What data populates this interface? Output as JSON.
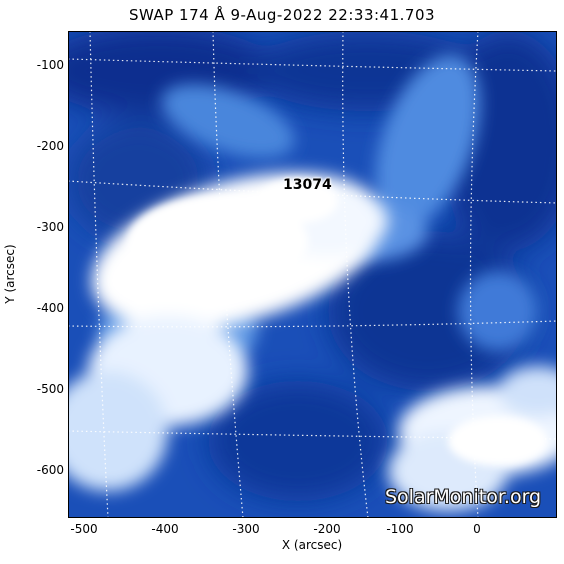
{
  "title": "SWAP 174 Å  9-Aug-2022 22:33:41.703",
  "active_region_label": "13074",
  "watermark": "SolarMonitor.org",
  "x_axis": {
    "title": "X (arcsec)",
    "ticks": [
      "-500",
      "-400",
      "-300",
      "-200",
      "-100",
      "0"
    ]
  },
  "y_axis": {
    "title": "Y (arcsec)",
    "ticks": [
      "-100",
      "-200",
      "-300",
      "-400",
      "-500",
      "-600"
    ]
  },
  "colors": {
    "dark_blue": "#0a2f8c",
    "mid_blue": "#2f6ed4",
    "bright": "#ffffff"
  }
}
